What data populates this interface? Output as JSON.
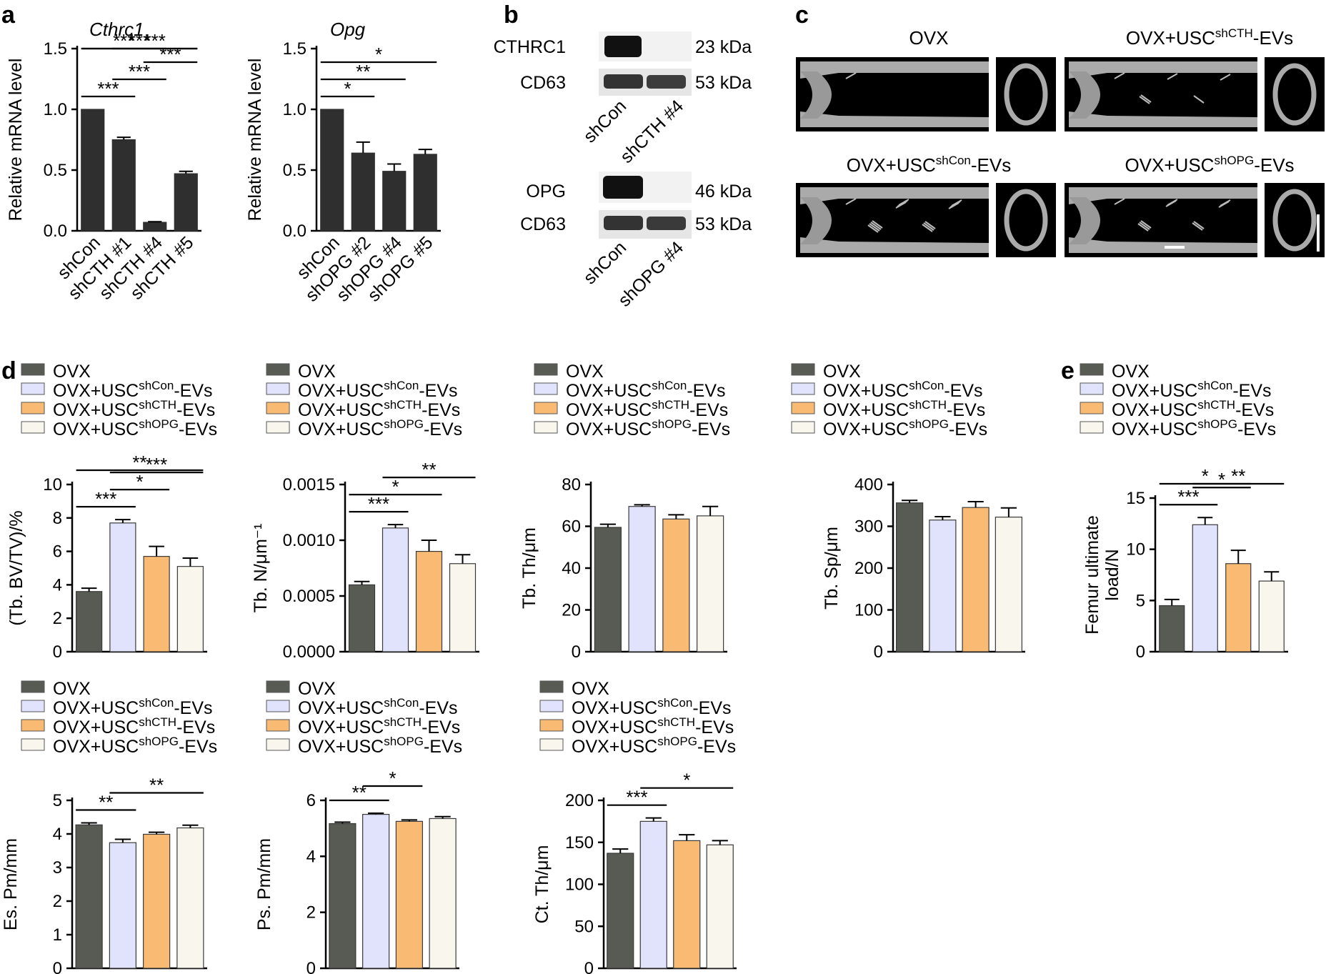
{
  "panels": {
    "a": "a",
    "b": "b",
    "c": "c",
    "d": "d",
    "e": "e"
  },
  "colors": {
    "ovx": "#575b53",
    "shcon": "#e1e2fb",
    "shcth": "#f9bb73",
    "shopg": "#f9f6ee"
  },
  "legend": [
    {
      "pre": "OVX",
      "sup": "",
      "post": "",
      "color": "#575b53"
    },
    {
      "pre": "OVX+USC",
      "sup": "shCon",
      "post": "-EVs",
      "color": "#e1e2fb"
    },
    {
      "pre": "OVX+USC",
      "sup": "shCTH",
      "post": "-EVs",
      "color": "#f9bb73"
    },
    {
      "pre": "OVX+USC",
      "sup": "shOPG",
      "post": "-EVs",
      "color": "#f9f6ee"
    }
  ],
  "blot_top": {
    "bands": [
      "CTHRC1",
      "CD63"
    ],
    "sizes": [
      "23 kDa",
      "53 kDa"
    ],
    "lanes": [
      "shCon",
      "shCTH #4"
    ]
  },
  "blot_bottom": {
    "bands": [
      "OPG",
      "CD63"
    ],
    "sizes": [
      "46 kDa",
      "53 kDa"
    ],
    "lanes": [
      "shCon",
      "shOPG #4"
    ]
  },
  "microct": [
    {
      "pre": "OVX",
      "sup": "",
      "post": ""
    },
    {
      "pre": "OVX+USC",
      "sup": "shCTH",
      "post": "-EVs"
    },
    {
      "pre": "OVX+USC",
      "sup": "shCon",
      "post": "-EVs"
    },
    {
      "pre": "OVX+USC",
      "sup": "shOPG",
      "post": "-EVs"
    }
  ],
  "chart_data": [
    {
      "id": "a1",
      "panel": "a",
      "type": "bar",
      "title": "Cthrc1",
      "ylabel": "Relative mRNA level",
      "categories": [
        "shCon",
        "shCTH #1",
        "shCTH #4",
        "shCTH #5"
      ],
      "values": [
        1.0,
        0.75,
        0.07,
        0.47
      ],
      "errors": [
        0,
        0.02,
        0.005,
        0.02
      ],
      "ylim": [
        0,
        1.5
      ],
      "yticks": [
        "0.0",
        "0.5",
        "1.0",
        "1.5"
      ],
      "ytick_values": [
        0,
        0.5,
        1.0,
        1.5
      ],
      "sig": [
        {
          "from": 0,
          "to": 3,
          "label": "***"
        },
        {
          "from": 0,
          "to": 2,
          "label": "***"
        },
        {
          "from": 0,
          "to": 1,
          "label": "***"
        },
        {
          "from": 1,
          "to": 3,
          "label": "***"
        },
        {
          "from": 1,
          "to": 2,
          "label": "***"
        },
        {
          "from": 2,
          "to": 3,
          "label": "***"
        }
      ]
    },
    {
      "id": "a2",
      "panel": "a",
      "type": "bar",
      "title": "Opg",
      "ylabel": "Relative mRNA level",
      "categories": [
        "shCon",
        "shOPG #2",
        "shOPG #4",
        "shOPG #5"
      ],
      "values": [
        1.0,
        0.64,
        0.49,
        0.63
      ],
      "errors": [
        0,
        0.09,
        0.06,
        0.04
      ],
      "ylim": [
        0,
        1.5
      ],
      "yticks": [
        "0.0",
        "0.5",
        "1.0",
        "1.5"
      ],
      "ytick_values": [
        0,
        0.5,
        1.0,
        1.5
      ],
      "sig": [
        {
          "from": 0,
          "to": 3,
          "label": "*"
        },
        {
          "from": 0,
          "to": 2,
          "label": "**"
        },
        {
          "from": 0,
          "to": 1,
          "label": "*"
        }
      ]
    },
    {
      "id": "d1",
      "panel": "d",
      "type": "bar",
      "ylabel": "(Tb. BV/TV)/%",
      "values": [
        3.6,
        7.7,
        5.7,
        5.1
      ],
      "errors": [
        0.2,
        0.2,
        0.6,
        0.5
      ],
      "ylim": [
        0,
        10
      ],
      "yticks": [
        "0",
        "2",
        "4",
        "6",
        "8",
        "10"
      ],
      "ytick_values": [
        0,
        2,
        4,
        6,
        8,
        10
      ],
      "sig": [
        {
          "from": 0,
          "to": 3,
          "label": "**"
        },
        {
          "from": 0,
          "to": 1,
          "label": "***"
        },
        {
          "from": 1,
          "to": 3,
          "label": "***"
        },
        {
          "from": 1,
          "to": 2,
          "label": "*"
        }
      ]
    },
    {
      "id": "d2",
      "panel": "d",
      "type": "bar",
      "ylabel": "Tb. N/μm⁻¹",
      "values": [
        0.0006,
        0.00111,
        0.0009,
        0.00079
      ],
      "errors": [
        3e-05,
        3e-05,
        0.0001,
        8e-05
      ],
      "ylim": [
        0,
        0.0015
      ],
      "yticks": [
        "0.0000",
        "0.0005",
        "0.0010",
        "0.0015"
      ],
      "ytick_values": [
        0,
        0.0005,
        0.001,
        0.0015
      ],
      "sig": [
        {
          "from": 0,
          "to": 2,
          "label": "*"
        },
        {
          "from": 0,
          "to": 1,
          "label": "***"
        },
        {
          "from": 1,
          "to": 3,
          "label": "**"
        }
      ]
    },
    {
      "id": "d3",
      "panel": "d",
      "type": "bar",
      "ylabel": "Tb. Th/μm",
      "values": [
        59.5,
        69.5,
        63.5,
        65
      ],
      "errors": [
        1.5,
        0.8,
        2,
        4.5
      ],
      "ylim": [
        0,
        80
      ],
      "yticks": [
        "0",
        "20",
        "40",
        "60",
        "80"
      ],
      "ytick_values": [
        0,
        20,
        40,
        60,
        80
      ],
      "sig": []
    },
    {
      "id": "d4",
      "panel": "d",
      "type": "bar",
      "ylabel": "Tb. Sp/μm",
      "values": [
        356,
        315,
        345,
        322
      ],
      "errors": [
        6,
        8,
        14,
        22
      ],
      "ylim": [
        0,
        400
      ],
      "yticks": [
        "0",
        "100",
        "200",
        "300",
        "400"
      ],
      "ytick_values": [
        0,
        100,
        200,
        300,
        400
      ],
      "sig": []
    },
    {
      "id": "e1",
      "panel": "e",
      "type": "bar",
      "ylabel": "Femur ultimate load/N",
      "ylabel_lines": [
        "Femur ultimate",
        "load/N"
      ],
      "values": [
        4.5,
        12.4,
        8.6,
        6.9
      ],
      "errors": [
        0.6,
        0.7,
        1.3,
        0.9
      ],
      "ylim": [
        0,
        15
      ],
      "yticks": [
        "0",
        "5",
        "10",
        "15"
      ],
      "ytick_values": [
        0,
        5,
        10,
        15
      ],
      "sig": [
        {
          "from": 0,
          "to": 2,
          "label": "*"
        },
        {
          "from": 0,
          "to": 1,
          "label": "***"
        },
        {
          "from": 1,
          "to": 2,
          "label": "*"
        },
        {
          "from": 1,
          "to": 3,
          "label": "**"
        }
      ]
    },
    {
      "id": "d5",
      "panel": "d",
      "type": "bar",
      "ylabel": "Es. Pm/mm",
      "values": [
        4.27,
        3.74,
        3.99,
        4.18
      ],
      "errors": [
        0.06,
        0.1,
        0.06,
        0.08
      ],
      "ylim": [
        0,
        5
      ],
      "yticks": [
        "0",
        "1",
        "2",
        "3",
        "4",
        "5"
      ],
      "ytick_values": [
        0,
        1,
        2,
        3,
        4,
        5
      ],
      "sig": [
        {
          "from": 0,
          "to": 1,
          "label": "**"
        },
        {
          "from": 1,
          "to": 3,
          "label": "**"
        }
      ]
    },
    {
      "id": "d6",
      "panel": "d",
      "type": "bar",
      "ylabel": "Ps. Pm/mm",
      "values": [
        5.17,
        5.5,
        5.25,
        5.35
      ],
      "errors": [
        0.05,
        0.04,
        0.05,
        0.07
      ],
      "ylim": [
        0,
        6
      ],
      "yticks": [
        "0",
        "2",
        "4",
        "6"
      ],
      "ytick_values": [
        0,
        2,
        4,
        6
      ],
      "sig": [
        {
          "from": 0,
          "to": 1,
          "label": "**"
        },
        {
          "from": 1,
          "to": 2,
          "label": "*"
        }
      ]
    },
    {
      "id": "d7",
      "panel": "d",
      "type": "bar",
      "ylabel": "Ct. Th/μm",
      "values": [
        137,
        175,
        152,
        147
      ],
      "errors": [
        5,
        4,
        7,
        5
      ],
      "ylim": [
        0,
        200
      ],
      "yticks": [
        "0",
        "50",
        "100",
        "150",
        "200"
      ],
      "ytick_values": [
        0,
        50,
        100,
        150,
        200
      ],
      "sig": [
        {
          "from": 0,
          "to": 1,
          "label": "***"
        },
        {
          "from": 1,
          "to": 3,
          "label": "*"
        }
      ]
    }
  ]
}
